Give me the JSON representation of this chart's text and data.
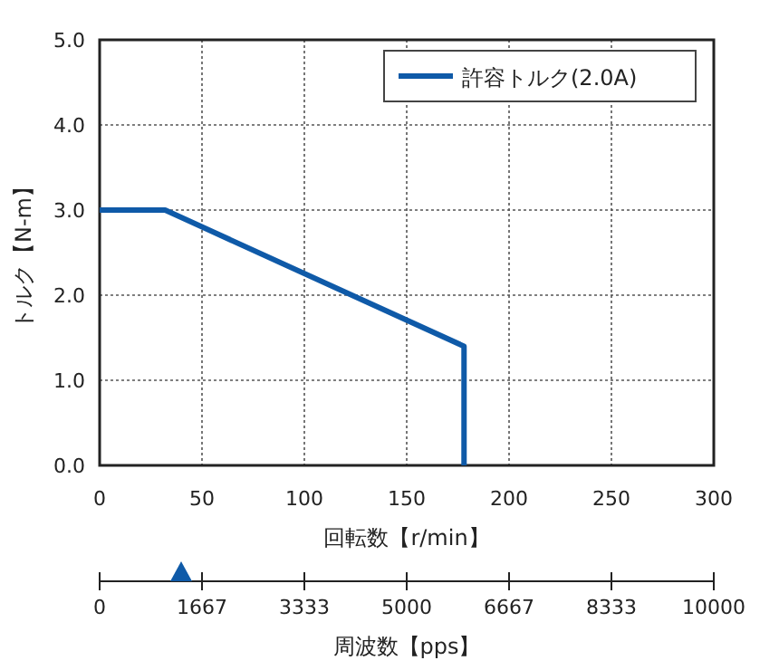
{
  "chart_data": {
    "type": "line",
    "xlabel": "回転数【r/min】",
    "ylabel": "トルク【N-m】",
    "x2label": "周波数【pps】",
    "series": [
      {
        "name": "許容トルク(2.0A)",
        "color": "#0f5aa8",
        "x": [
          0,
          32,
          178,
          178
        ],
        "values": [
          3.0,
          3.0,
          1.4,
          0
        ]
      }
    ],
    "xlim": [
      0,
      300
    ],
    "xticks": [
      0,
      50,
      100,
      150,
      200,
      250,
      300
    ],
    "ylim": [
      0,
      5
    ],
    "yticks": [
      {
        "value": 0,
        "label": "0.0"
      },
      {
        "value": 1,
        "label": "1.0"
      },
      {
        "value": 2,
        "label": "2.0"
      },
      {
        "value": 3,
        "label": "3.0"
      },
      {
        "value": 4,
        "label": "4.0"
      },
      {
        "value": 5,
        "label": "5.0"
      }
    ],
    "x2lim": [
      0,
      10000
    ],
    "x2ticks": [
      0,
      1667,
      3333,
      5000,
      6667,
      8333,
      10000
    ],
    "grid": true,
    "legend": "top right",
    "marker": "none",
    "line_style": "solid"
  }
}
